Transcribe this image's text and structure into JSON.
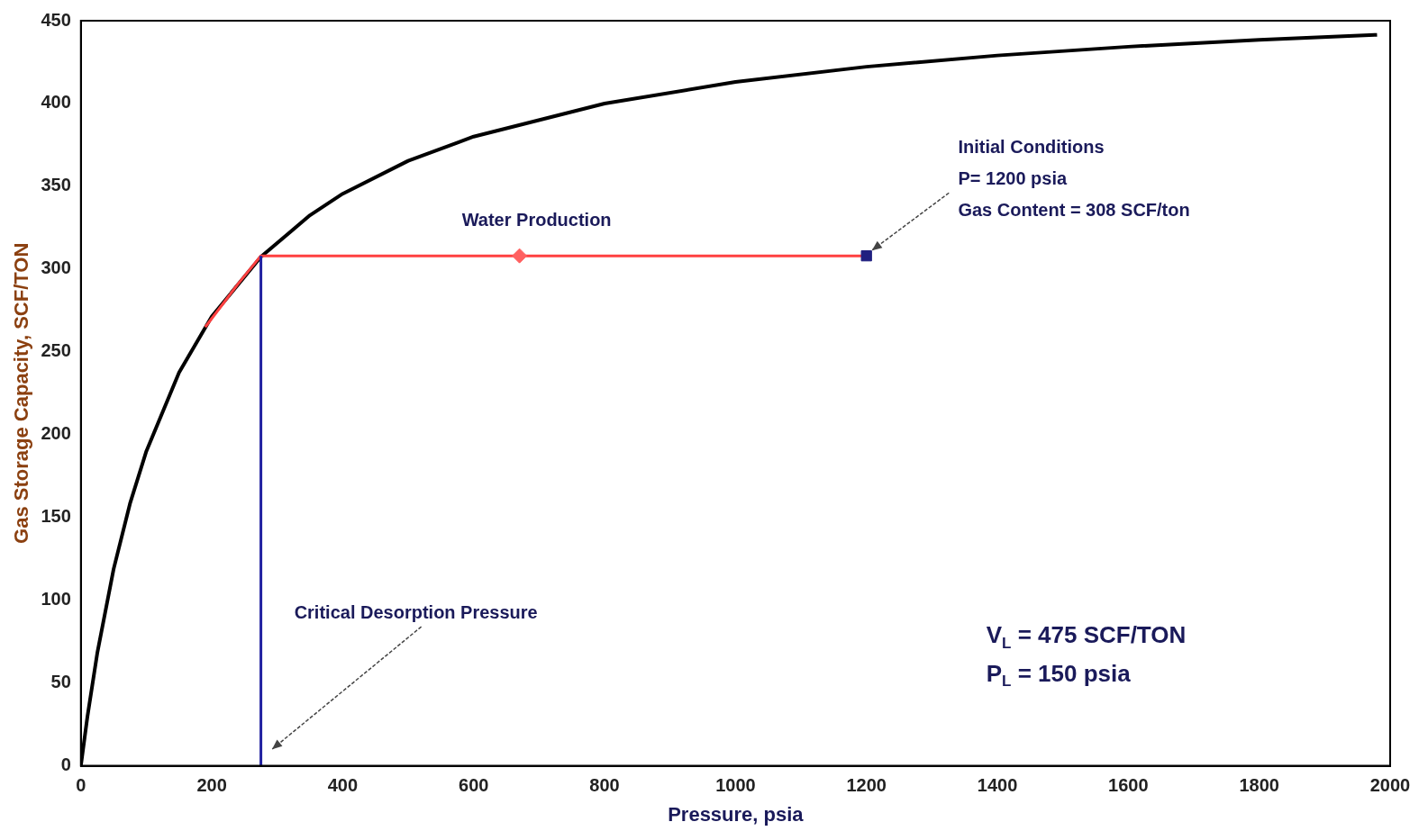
{
  "chart_data": {
    "type": "line",
    "xlabel": "Pressure, psia",
    "ylabel": "Gas Storage Capacity, SCF/TON",
    "xlim": [
      0,
      2000
    ],
    "xticks": [
      0,
      200,
      400,
      600,
      800,
      1000,
      1200,
      1400,
      1600,
      1800,
      2000
    ],
    "ylim": [
      0,
      450
    ],
    "yticks": [
      0,
      50,
      100,
      150,
      200,
      250,
      300,
      350,
      400,
      450
    ],
    "grid": false,
    "legend": false,
    "series": [
      {
        "type": "line",
        "color": "#000000",
        "marker": "none",
        "x": [
          0,
          10,
          25,
          50,
          75,
          100,
          150,
          200,
          275,
          350,
          400,
          500,
          600,
          800,
          1000,
          1200,
          1400,
          1600,
          1800,
          1980
        ],
        "values": [
          0,
          29.7,
          67.9,
          118.8,
          158.3,
          190,
          237.5,
          271.4,
          307.4,
          332.5,
          345.5,
          365.4,
          380,
          400,
          413,
          422.2,
          429,
          434.3,
          438.5,
          441.5
        ]
      },
      {
        "type": "line",
        "color": "#ff4040",
        "marker": "none",
        "x": [
          1200,
          275,
          240,
          190
        ],
        "values": [
          308,
          308,
          291,
          265
        ]
      },
      {
        "type": "scatter",
        "color": "#ff6060",
        "marker": "diamond",
        "x": [
          670
        ],
        "values": [
          308
        ]
      },
      {
        "type": "line",
        "color": "#2020a0",
        "marker": "none",
        "x": [
          275,
          275
        ],
        "values": [
          0,
          308
        ]
      },
      {
        "type": "scatter",
        "color": "#202080",
        "marker": "square",
        "x": [
          1200
        ],
        "values": [
          308
        ]
      }
    ],
    "annotations": [
      "Water Production",
      "Initial Conditions",
      {
        "text": "P= 1200 psia",
        "x": 1200,
        "y": 308
      },
      "Gas Content = 308 SCF/ton",
      "Critical Desorption Pressure",
      "V$_{L}$ = 475 SCF/TON",
      "P$_{L}$ = 150 psia"
    ]
  }
}
